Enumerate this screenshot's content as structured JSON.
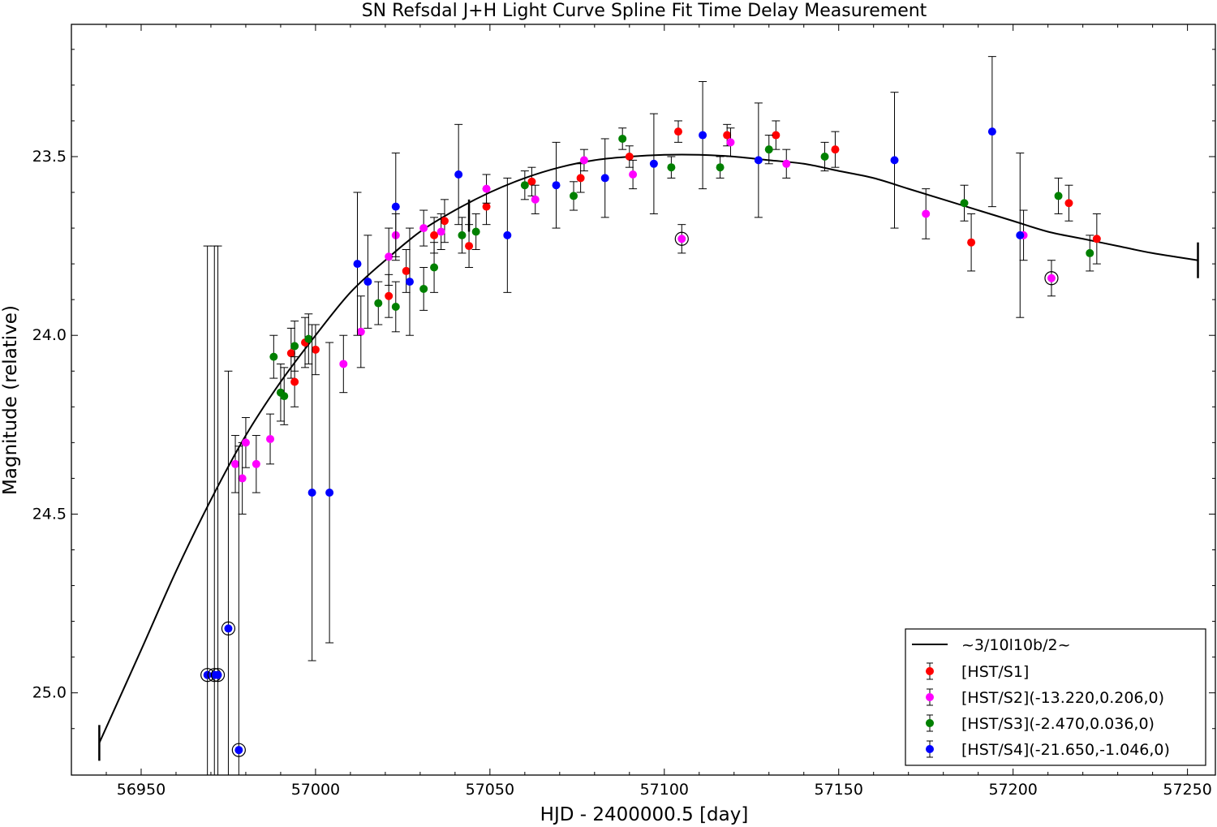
{
  "chart_data": {
    "type": "scatter",
    "title": "SN Refsdal J+H Light Curve Spline Fit Time Delay Measurement",
    "xlabel": "HJD - 2400000.5 [day]",
    "ylabel": "Magnitude (relative)",
    "xlim": [
      56930,
      57258
    ],
    "ylim": [
      25.23,
      23.13
    ],
    "y_inverted": true,
    "x_ticks": [
      56950,
      57000,
      57050,
      57100,
      57150,
      57200,
      57250
    ],
    "y_ticks": [
      23.5,
      24.0,
      24.5,
      25.0
    ],
    "x_tick_labels": [
      "56950",
      "57000",
      "57050",
      "57100",
      "57150",
      "57200",
      "57250"
    ],
    "y_tick_labels": [
      "23.5",
      "24.0",
      "24.5",
      "25.0"
    ],
    "grid": false,
    "legend_position": "bottom-right",
    "spline": {
      "label": "~3/10l10b/2~",
      "color": "#000000",
      "x": [
        56938,
        56950,
        56960,
        56970,
        56980,
        56990,
        57000,
        57010,
        57020,
        57030,
        57040,
        57050,
        57060,
        57070,
        57080,
        57090,
        57100,
        57110,
        57120,
        57130,
        57140,
        57150,
        57160,
        57170,
        57180,
        57190,
        57200,
        57210,
        57220,
        57230,
        57240,
        57253
      ],
      "y": [
        25.14,
        24.88,
        24.66,
        24.46,
        24.28,
        24.13,
        24.0,
        23.88,
        23.79,
        23.71,
        23.65,
        23.6,
        23.56,
        23.53,
        23.51,
        23.5,
        23.495,
        23.495,
        23.5,
        23.51,
        23.52,
        23.54,
        23.56,
        23.59,
        23.62,
        23.65,
        23.68,
        23.71,
        23.73,
        23.75,
        23.77,
        23.79
      ],
      "end_marker_error": [
        0.05,
        0.05
      ]
    },
    "series": [
      {
        "name": "[HST/S1]",
        "color": "#ff0000",
        "points": [
          {
            "x": 56993,
            "y": 24.05,
            "err": 0.07
          },
          {
            "x": 56994,
            "y": 24.13,
            "err": 0.07
          },
          {
            "x": 56997,
            "y": 24.02,
            "err": 0.07
          },
          {
            "x": 57000,
            "y": 24.04,
            "err": 0.07
          },
          {
            "x": 57021,
            "y": 23.89,
            "err": 0.06
          },
          {
            "x": 57026,
            "y": 23.82,
            "err": 0.06
          },
          {
            "x": 57034,
            "y": 23.72,
            "err": 0.05
          },
          {
            "x": 57037,
            "y": 23.68,
            "err": 0.06
          },
          {
            "x": 57044,
            "y": 23.75,
            "err": 0.06
          },
          {
            "x": 57049,
            "y": 23.64,
            "err": 0.05
          },
          {
            "x": 57062,
            "y": 23.57,
            "err": 0.04
          },
          {
            "x": 57076,
            "y": 23.56,
            "err": 0.04
          },
          {
            "x": 57090,
            "y": 23.5,
            "err": 0.03
          },
          {
            "x": 57104,
            "y": 23.43,
            "err": 0.03
          },
          {
            "x": 57118,
            "y": 23.44,
            "err": 0.03
          },
          {
            "x": 57132,
            "y": 23.44,
            "err": 0.04
          },
          {
            "x": 57149,
            "y": 23.48,
            "err": 0.05
          },
          {
            "x": 57188,
            "y": 23.74,
            "err": 0.08
          },
          {
            "x": 57216,
            "y": 23.63,
            "err": 0.05
          },
          {
            "x": 57224,
            "y": 23.73,
            "err": 0.07
          }
        ]
      },
      {
        "name": "[HST/S2](-13.220,0.206,0)",
        "color": "#ff00ff",
        "points": [
          {
            "x": 56977,
            "y": 24.36,
            "err": 0.08
          },
          {
            "x": 56979,
            "y": 24.4,
            "err": 0.1
          },
          {
            "x": 56980,
            "y": 24.3,
            "err": 0.07
          },
          {
            "x": 56983,
            "y": 24.36,
            "err": 0.08
          },
          {
            "x": 56987,
            "y": 24.29,
            "err": 0.07
          },
          {
            "x": 57008,
            "y": 24.08,
            "err": 0.08
          },
          {
            "x": 57013,
            "y": 23.99,
            "err": 0.1
          },
          {
            "x": 57021,
            "y": 23.78,
            "err": 0.08
          },
          {
            "x": 57023,
            "y": 23.72,
            "err": 0.06
          },
          {
            "x": 57031,
            "y": 23.7,
            "err": 0.05
          },
          {
            "x": 57036,
            "y": 23.71,
            "err": 0.05
          },
          {
            "x": 57049,
            "y": 23.59,
            "err": 0.04
          },
          {
            "x": 57063,
            "y": 23.62,
            "err": 0.04
          },
          {
            "x": 57077,
            "y": 23.51,
            "err": 0.03
          },
          {
            "x": 57091,
            "y": 23.55,
            "err": 0.04
          },
          {
            "x": 57105,
            "y": 23.73,
            "err": 0.04,
            "circled": true
          },
          {
            "x": 57119,
            "y": 23.46,
            "err": 0.04
          },
          {
            "x": 57135,
            "y": 23.52,
            "err": 0.04
          },
          {
            "x": 57175,
            "y": 23.66,
            "err": 0.07
          },
          {
            "x": 57203,
            "y": 23.72,
            "err": 0.07
          },
          {
            "x": 57211,
            "y": 23.84,
            "err": 0.05,
            "circled": true
          }
        ]
      },
      {
        "name": "[HST/S3](-2.470,0.036,0)",
        "color": "#008000",
        "points": [
          {
            "x": 56988,
            "y": 24.06,
            "err": 0.06
          },
          {
            "x": 56990,
            "y": 24.16,
            "err": 0.08
          },
          {
            "x": 56991,
            "y": 24.17,
            "err": 0.08
          },
          {
            "x": 56994,
            "y": 24.03,
            "err": 0.07
          },
          {
            "x": 56998,
            "y": 24.01,
            "err": 0.07
          },
          {
            "x": 57018,
            "y": 23.91,
            "err": 0.06
          },
          {
            "x": 57023,
            "y": 23.92,
            "err": 0.07
          },
          {
            "x": 57031,
            "y": 23.87,
            "err": 0.06
          },
          {
            "x": 57034,
            "y": 23.81,
            "err": 0.07
          },
          {
            "x": 57042,
            "y": 23.72,
            "err": 0.05
          },
          {
            "x": 57046,
            "y": 23.71,
            "err": 0.05
          },
          {
            "x": 57060,
            "y": 23.58,
            "err": 0.04
          },
          {
            "x": 57074,
            "y": 23.61,
            "err": 0.04
          },
          {
            "x": 57088,
            "y": 23.45,
            "err": 0.03
          },
          {
            "x": 57102,
            "y": 23.53,
            "err": 0.03
          },
          {
            "x": 57116,
            "y": 23.53,
            "err": 0.03
          },
          {
            "x": 57130,
            "y": 23.48,
            "err": 0.04
          },
          {
            "x": 57146,
            "y": 23.5,
            "err": 0.04
          },
          {
            "x": 57186,
            "y": 23.63,
            "err": 0.05
          },
          {
            "x": 57213,
            "y": 23.61,
            "err": 0.05
          },
          {
            "x": 57222,
            "y": 23.77,
            "err": 0.05
          }
        ]
      },
      {
        "name": "[HST/S4](-21.650,-1.046,0)",
        "color": "#0000ff",
        "points": [
          {
            "x": 56969,
            "y": 24.95,
            "err": 1.2,
            "circled": true
          },
          {
            "x": 56971,
            "y": 24.95,
            "err": 1.2,
            "circled": true
          },
          {
            "x": 56972,
            "y": 24.95,
            "err": 1.2,
            "circled": true
          },
          {
            "x": 56975,
            "y": 24.82,
            "err": 0.72,
            "circled": true
          },
          {
            "x": 56978,
            "y": 25.16,
            "err": 0.85,
            "circled": true
          },
          {
            "x": 56999,
            "y": 24.44,
            "err": 0.47
          },
          {
            "x": 57004,
            "y": 24.44,
            "err": 0.42
          },
          {
            "x": 57012,
            "y": 23.8,
            "err": 0.2
          },
          {
            "x": 57015,
            "y": 23.85,
            "err": 0.13
          },
          {
            "x": 57023,
            "y": 23.64,
            "err": 0.15
          },
          {
            "x": 57027,
            "y": 23.85,
            "err": 0.15
          },
          {
            "x": 57041,
            "y": 23.55,
            "err": 0.14
          },
          {
            "x": 57055,
            "y": 23.72,
            "err": 0.16
          },
          {
            "x": 57069,
            "y": 23.58,
            "err": 0.12
          },
          {
            "x": 57083,
            "y": 23.56,
            "err": 0.11
          },
          {
            "x": 57097,
            "y": 23.52,
            "err": 0.14
          },
          {
            "x": 57111,
            "y": 23.44,
            "err": 0.15
          },
          {
            "x": 57127,
            "y": 23.51,
            "err": 0.16
          },
          {
            "x": 57166,
            "y": 23.51,
            "err": 0.19
          },
          {
            "x": 57194,
            "y": 23.43,
            "err": 0.21
          },
          {
            "x": 57202,
            "y": 23.72,
            "err": 0.23
          }
        ]
      }
    ]
  }
}
